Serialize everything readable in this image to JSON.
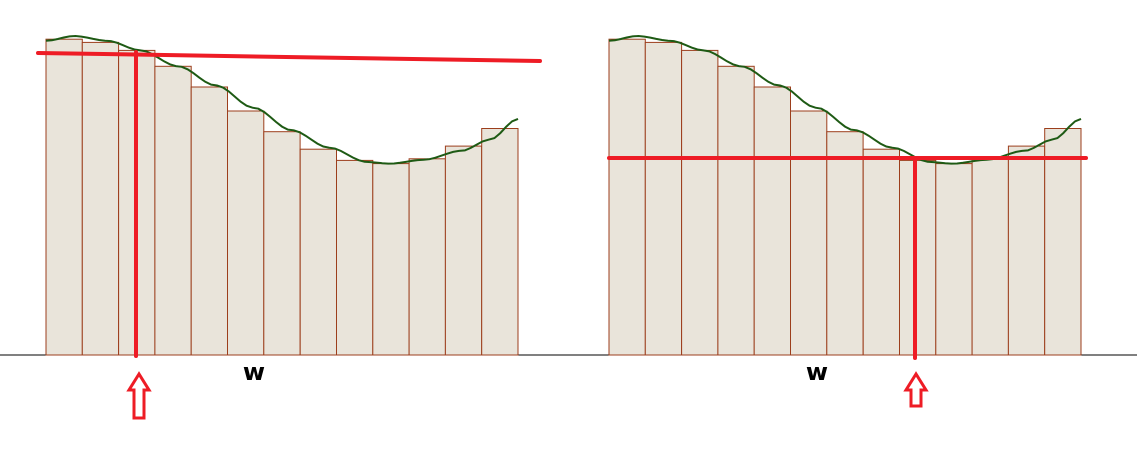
{
  "panels": [
    {
      "id": "left",
      "axis_label": "w",
      "bar_heights": [
        0.99,
        0.98,
        0.955,
        0.905,
        0.84,
        0.765,
        0.7,
        0.645,
        0.61,
        0.6,
        0.615,
        0.655,
        0.71
      ],
      "level_line": "sloped",
      "arrow_bar_boundary": 2.5
    },
    {
      "id": "right",
      "axis_label": "w",
      "bar_heights": [
        0.99,
        0.98,
        0.955,
        0.905,
        0.84,
        0.765,
        0.7,
        0.645,
        0.61,
        0.6,
        0.615,
        0.655,
        0.71
      ],
      "level_line": "horizontal",
      "arrow_bar_boundary": 8.3
    }
  ],
  "colors": {
    "bar_fill": "#e9e4da",
    "bar_stroke": "#9c3e1c",
    "curve": "#1e5a14",
    "marker": "#ee1c25"
  }
}
